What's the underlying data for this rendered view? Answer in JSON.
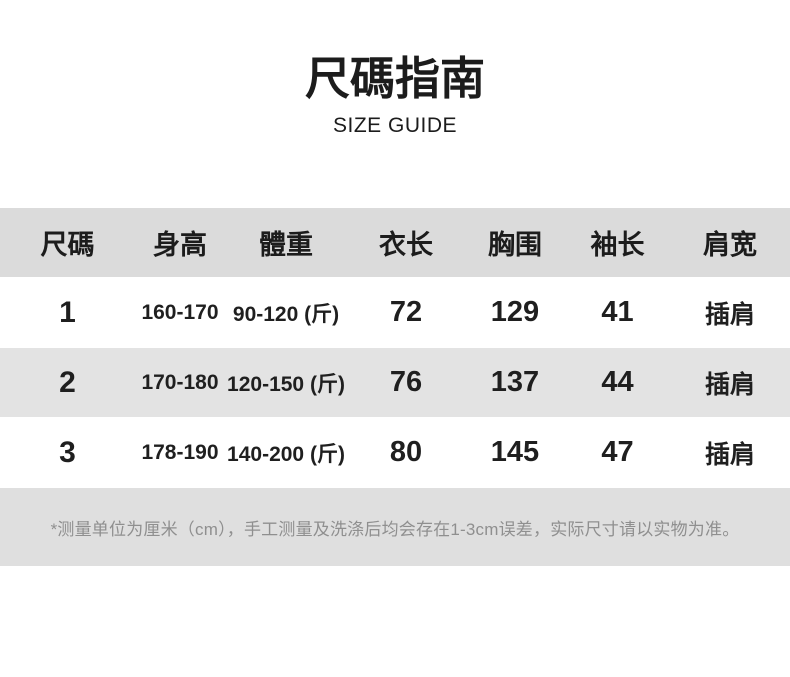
{
  "page": {
    "title": "尺碼指南",
    "subtitle": "SIZE GUIDE"
  },
  "table": {
    "headers": [
      "尺碼",
      "身高",
      "體重",
      "衣长",
      "胸围",
      "袖长",
      "肩宽"
    ],
    "rows": [
      [
        "1",
        "160-170",
        "90-120 (斤)",
        "72",
        "129",
        "41",
        "插肩"
      ],
      [
        "2",
        "170-180",
        "120-150 (斤)",
        "76",
        "137",
        "44",
        "插肩"
      ],
      [
        "3",
        "178-190",
        "140-200 (斤)",
        "80",
        "145",
        "47",
        "插肩"
      ]
    ],
    "footnote": "*测量单位为厘米（cm），手工测量及洗涤后均会存在1-3cm误差，实际尺寸请以实物为准。"
  },
  "colors": {
    "header_bg": "#dbdbdb",
    "alt_row_bg": "#e3e3e3",
    "note_bg": "#dfdfdf",
    "text": "#1c1c1c",
    "note_text": "#8f8f8f"
  }
}
